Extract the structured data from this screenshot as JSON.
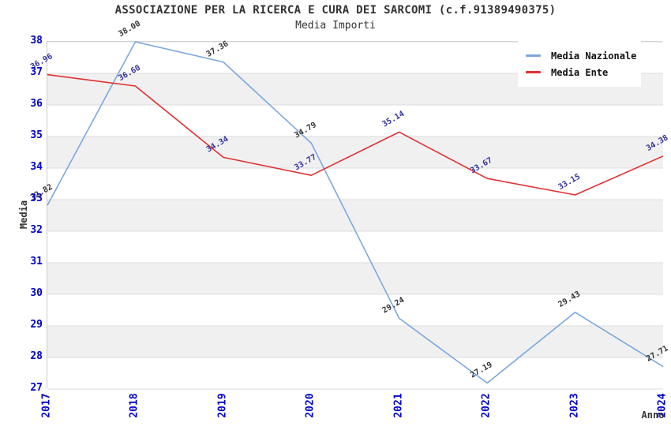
{
  "chart_data": {
    "type": "line",
    "title": "ASSOCIAZIONE PER LA RICERCA E CURA DEI SARCOMI (c.f.91389490375)",
    "subtitle": "Media Importi",
    "xlabel": "Anno",
    "ylabel": "Media",
    "x": [
      "2017",
      "2018",
      "2019",
      "2020",
      "2021",
      "2022",
      "2023",
      "2024"
    ],
    "ylim": [
      27,
      38
    ],
    "yticks": [
      27,
      28,
      29,
      30,
      31,
      32,
      33,
      34,
      35,
      36,
      37,
      38
    ],
    "series": [
      {
        "name": "Media Nazionale",
        "color": "#79a8de",
        "label_color": "#333333",
        "values": [
          32.82,
          38.0,
          37.36,
          34.79,
          29.24,
          27.19,
          29.43,
          27.71
        ]
      },
      {
        "name": "Media Ente",
        "color": "#e03030",
        "label_color": "#333399",
        "values": [
          36.96,
          36.6,
          34.34,
          33.77,
          35.14,
          33.67,
          33.15,
          34.38
        ]
      }
    ],
    "grid": "horizontal",
    "gridline_color": "#dcdcdc",
    "band_colors": [
      "#ffffff",
      "#f0f0f0"
    ],
    "plot_border_color": "#cccccc",
    "tick_label_color": "#0000cc",
    "legend_position": "top-right"
  }
}
